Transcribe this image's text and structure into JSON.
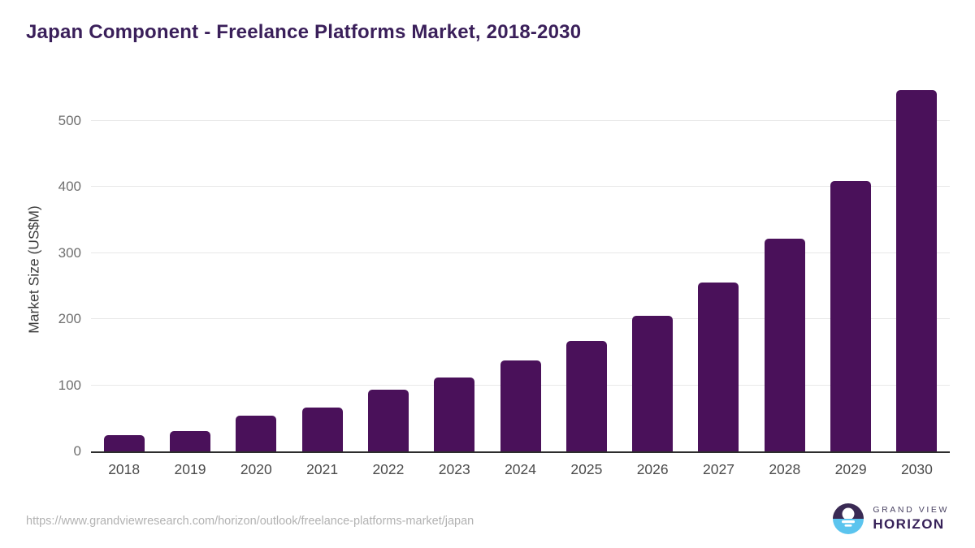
{
  "header": {
    "title": "Japan Component - Freelance Platforms Market, 2018-2030"
  },
  "chart_data": {
    "type": "bar",
    "title": "Japan Component - Freelance Platforms Market, 2018-2030",
    "categories": [
      "2018",
      "2019",
      "2020",
      "2021",
      "2022",
      "2023",
      "2024",
      "2025",
      "2026",
      "2027",
      "2028",
      "2029",
      "2030"
    ],
    "values": [
      25,
      31,
      54,
      66,
      94,
      112,
      137,
      167,
      205,
      256,
      322,
      409,
      546
    ],
    "xlabel": "",
    "ylabel": "Market Size (US$M)",
    "ylim": [
      0,
      560
    ],
    "yticks": [
      0,
      100,
      200,
      300,
      400,
      500
    ],
    "grid": "horizontal",
    "legend": "none",
    "bar_color": "#4a115a"
  },
  "footer": {
    "source_url": "https://www.grandviewresearch.com/horizon/outlook/freelance-platforms-market/japan",
    "logo": {
      "line1": "GRAND VIEW",
      "line2": "HORIZON"
    }
  },
  "colors": {
    "title": "#3a1f5a",
    "bar": "#4a115a",
    "gridline": "#e8e8e8",
    "axis_line": "#2d2d2d",
    "ytick_text": "#6f6f6f",
    "xtick_text": "#4b4b4b",
    "url_text": "#b2b2b2",
    "logo_dark_half": "#3a2a54",
    "logo_blue_half": "#5bc4ee"
  }
}
